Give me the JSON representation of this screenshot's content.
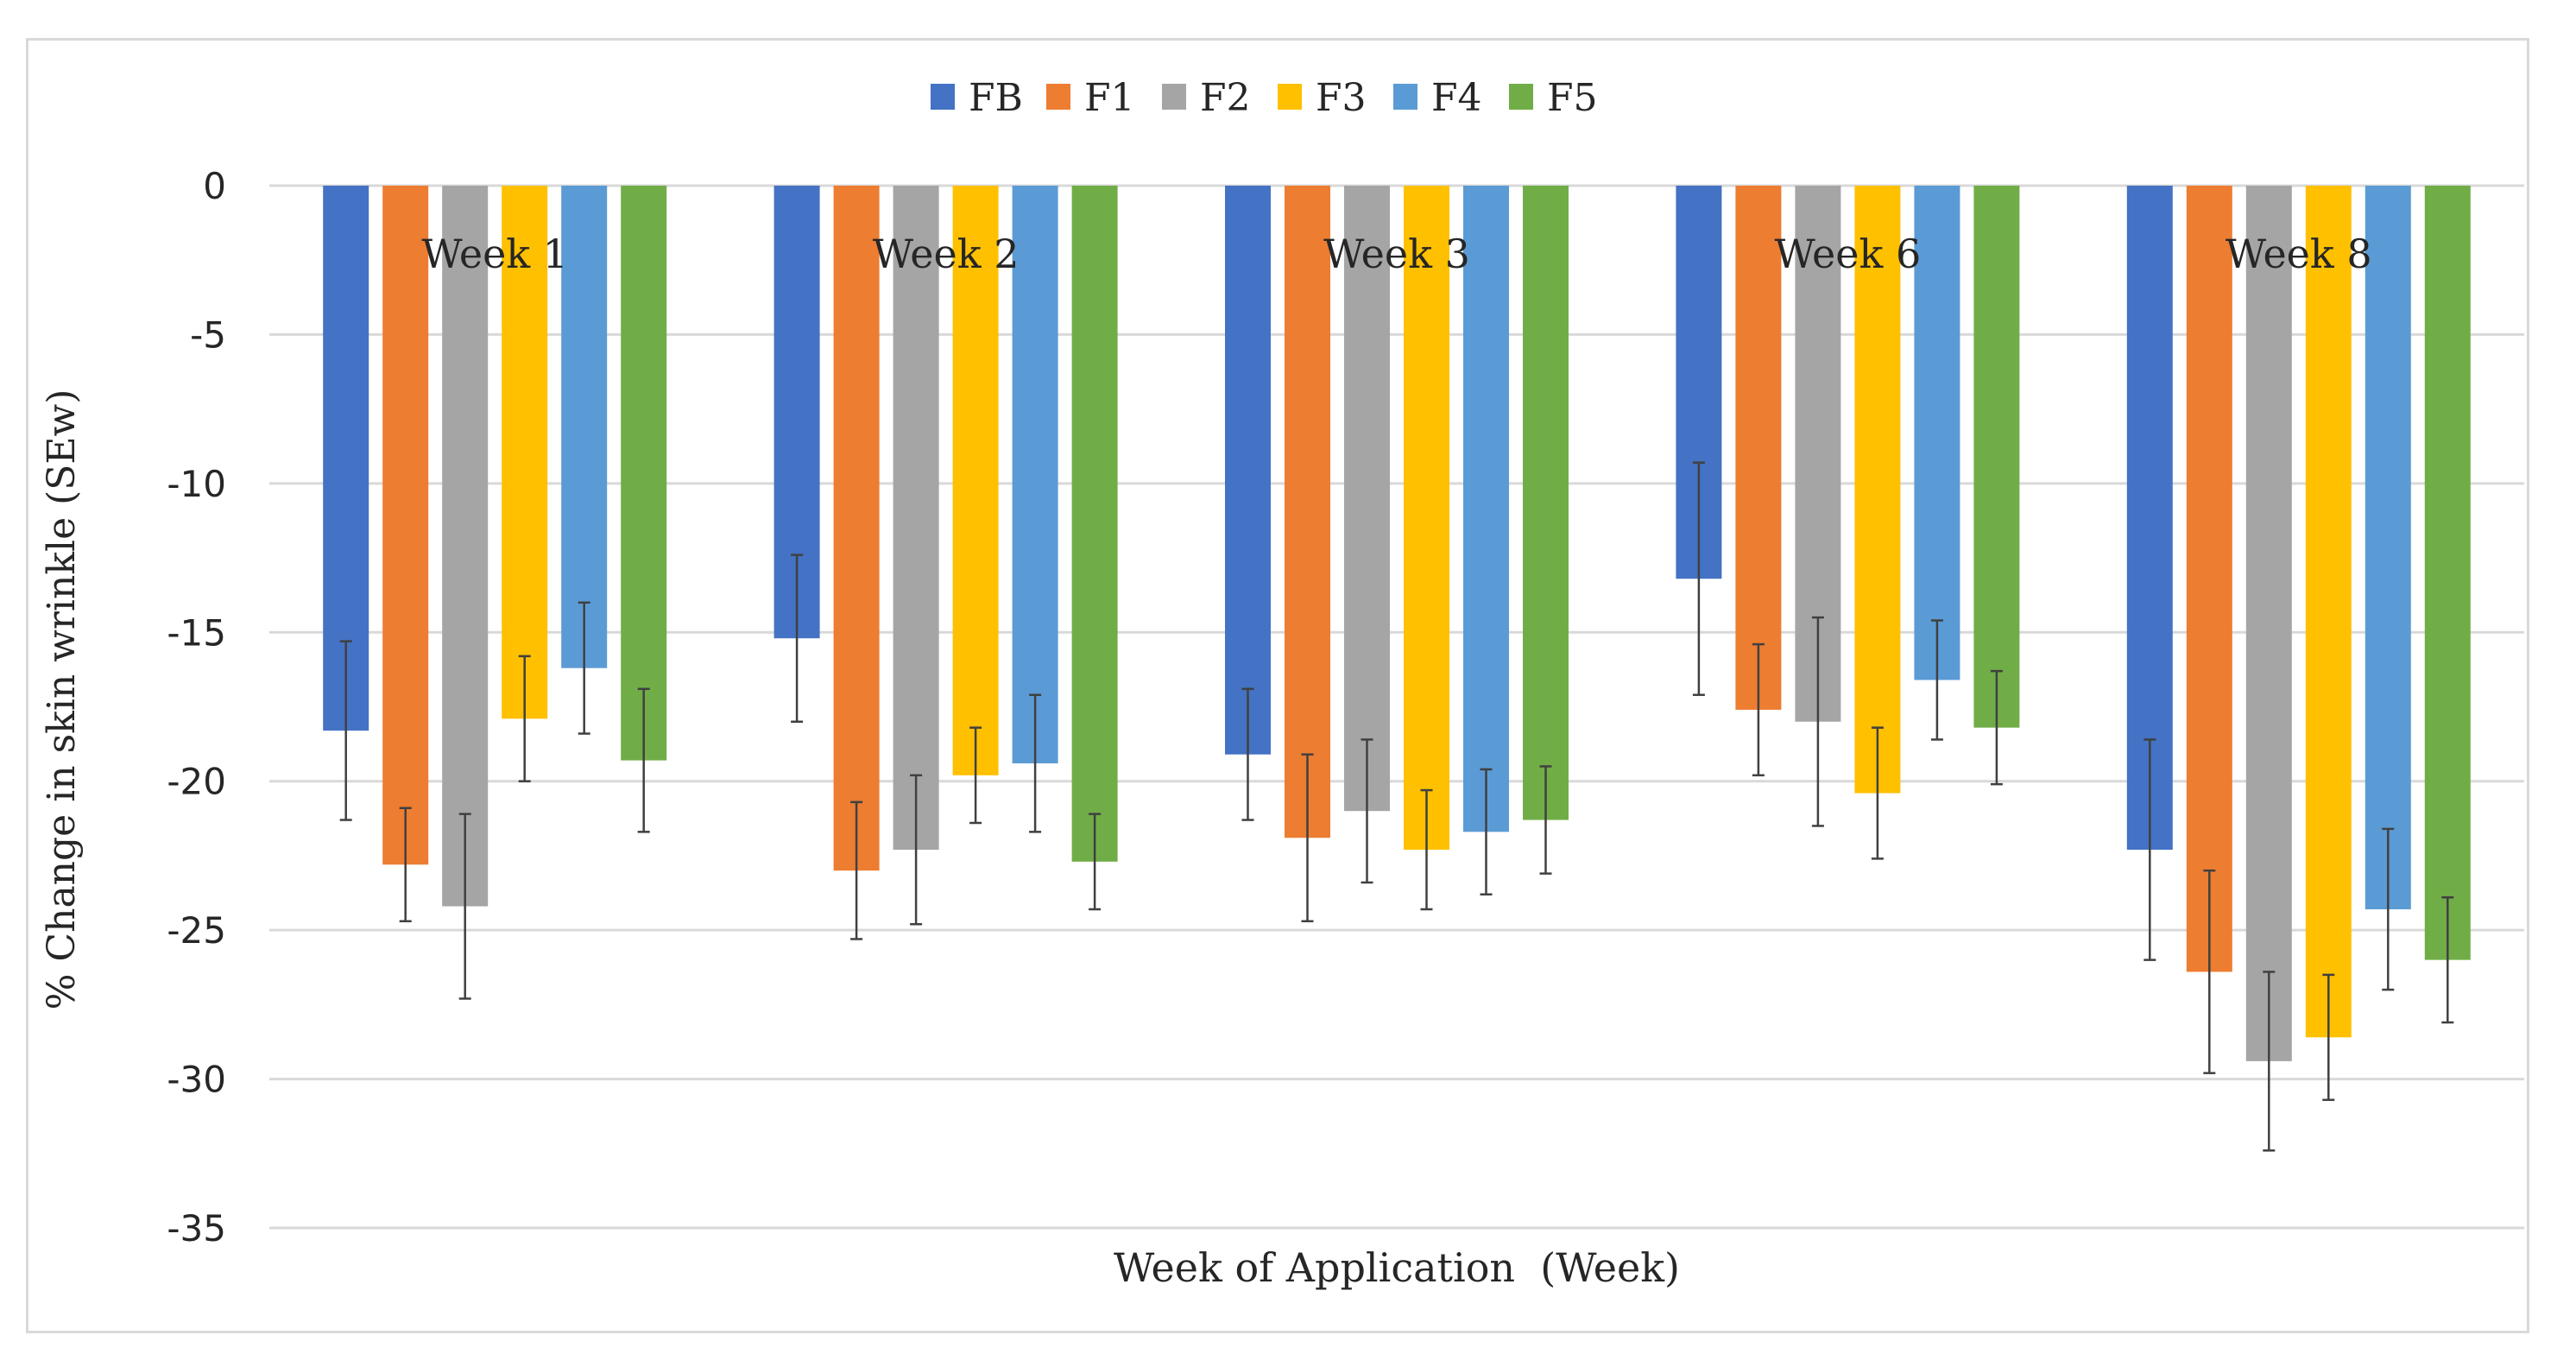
{
  "chart_data": {
    "type": "bar",
    "title": "",
    "xlabel": "Week of Application  (Week)",
    "ylabel": "% Change in skin wrinkle (SEw)",
    "categories": [
      "Week 1",
      "Week 2",
      "Week 3",
      "Week 6",
      "Week 8"
    ],
    "ylim": [
      -35,
      0
    ],
    "yticks": [
      0,
      -5,
      -10,
      -15,
      -20,
      -25,
      -30,
      -35
    ],
    "grid": true,
    "legend_position": "top-center",
    "series": [
      {
        "name": "FB",
        "color": "#4472c4",
        "values": [
          -18.3,
          -15.2,
          -19.1,
          -13.2,
          -22.3
        ],
        "errors": [
          3.0,
          2.8,
          2.2,
          3.9,
          3.7
        ]
      },
      {
        "name": "F1",
        "color": "#ed7d31",
        "values": [
          -22.8,
          -23.0,
          -21.9,
          -17.6,
          -26.4
        ],
        "errors": [
          1.9,
          2.3,
          2.8,
          2.2,
          3.4
        ]
      },
      {
        "name": "F2",
        "color": "#a5a5a5",
        "values": [
          -24.2,
          -22.3,
          -21.0,
          -18.0,
          -29.4
        ],
        "errors": [
          3.1,
          2.5,
          2.4,
          3.5,
          3.0
        ]
      },
      {
        "name": "F3",
        "color": "#ffc000",
        "values": [
          -17.9,
          -19.8,
          -22.3,
          -20.4,
          -28.6
        ],
        "errors": [
          2.1,
          1.6,
          2.0,
          2.2,
          2.1
        ]
      },
      {
        "name": "F4",
        "color": "#5b9bd5",
        "values": [
          -16.2,
          -19.4,
          -21.7,
          -16.6,
          -24.3
        ],
        "errors": [
          2.2,
          2.3,
          2.1,
          2.0,
          2.7
        ]
      },
      {
        "name": "F5",
        "color": "#70ad47",
        "values": [
          -19.3,
          -22.7,
          -21.3,
          -18.2,
          -26.0
        ],
        "errors": [
          2.4,
          1.6,
          1.8,
          1.9,
          2.1
        ]
      }
    ]
  }
}
